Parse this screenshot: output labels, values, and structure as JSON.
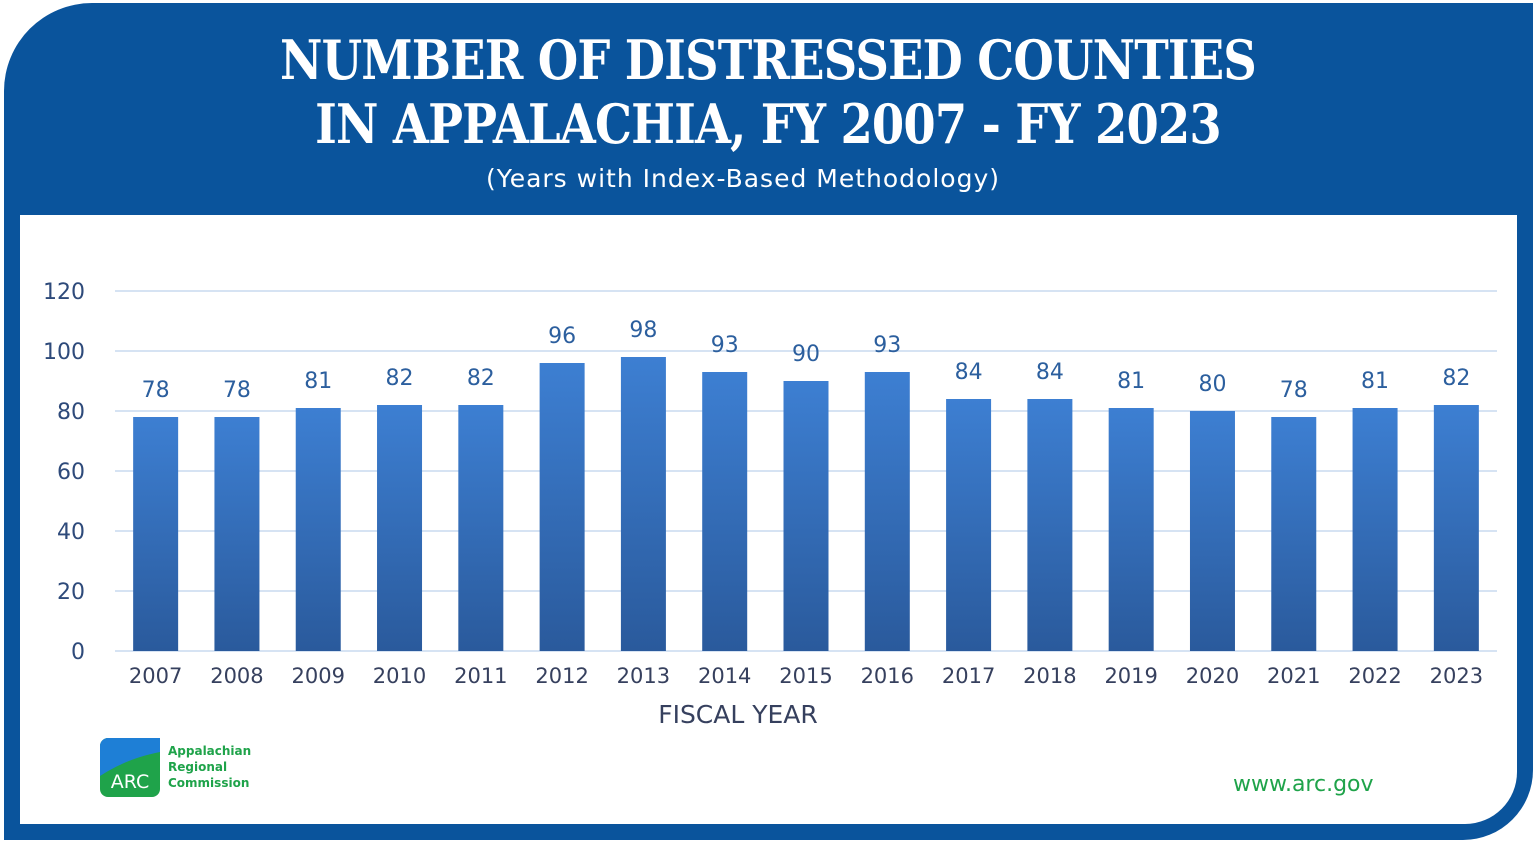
{
  "chart_data": {
    "type": "bar",
    "title": "NUMBER OF DISTRESSED COUNTIES IN APPALACHIA, FY 2007 - FY 2023",
    "title_lines": [
      "NUMBER OF DISTRESSED COUNTIES",
      "IN APPALACHIA, FY 2007 - FY 2023"
    ],
    "subtitle": "(Years with Index-Based Methodology)",
    "xlabel": "FISCAL YEAR",
    "ylabel": "",
    "categories": [
      "2007",
      "2008",
      "2009",
      "2010",
      "2011",
      "2012",
      "2013",
      "2014",
      "2015",
      "2016",
      "2017",
      "2018",
      "2019",
      "2020",
      "2021",
      "2022",
      "2023"
    ],
    "values": [
      78,
      78,
      81,
      82,
      82,
      96,
      98,
      93,
      90,
      93,
      84,
      84,
      81,
      80,
      78,
      81,
      82
    ],
    "ylim": [
      0,
      120
    ],
    "yticks": [
      0,
      20,
      40,
      60,
      80,
      100,
      120
    ],
    "grid": true,
    "data_labels": true,
    "colors": {
      "bar_top": "#3d7fd2",
      "bar_bottom": "#2a5a9c",
      "frame": "#0a549c",
      "brand_green": "#1fa34a"
    }
  },
  "logo": {
    "abbr": "ARC",
    "lines": [
      "Appalachian",
      "Regional",
      "Commission"
    ]
  },
  "footer": {
    "url": "www.arc.gov"
  }
}
